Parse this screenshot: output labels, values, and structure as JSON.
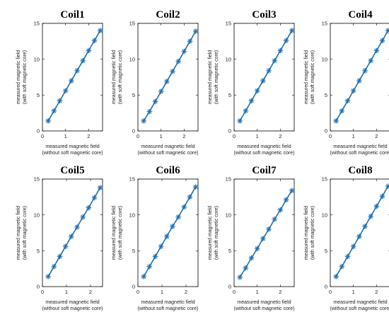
{
  "figure": {
    "series_color": "#1f6fb2",
    "marker": "asterisk"
  },
  "chart_data": [
    {
      "type": "line",
      "title": "Coil1",
      "xlabel": [
        "measured magnetic field",
        "(without soft magnetic core)"
      ],
      "ylabel": [
        "measured magnetic field",
        "(with soft magnetic core)"
      ],
      "xlim": [
        0,
        2.6
      ],
      "ylim": [
        0,
        15
      ],
      "xticks": [
        0,
        1,
        2
      ],
      "yticks": [
        0,
        5,
        10,
        15
      ],
      "x": [
        0.25,
        0.5,
        0.75,
        1.0,
        1.25,
        1.5,
        1.75,
        2.0,
        2.25,
        2.5
      ],
      "y": [
        1.4,
        2.8,
        4.2,
        5.6,
        7.0,
        8.4,
        9.8,
        11.2,
        12.6,
        14.0
      ]
    },
    {
      "type": "line",
      "title": "Coil2",
      "xlabel": [
        "measured magnetic field",
        "(without soft magnetic core)"
      ],
      "ylabel": [
        "measured magnetic field",
        "(with soft magnetic core)"
      ],
      "xlim": [
        0,
        2.6
      ],
      "ylim": [
        0,
        15
      ],
      "xticks": [
        0,
        1,
        2
      ],
      "yticks": [
        0,
        5,
        10,
        15
      ],
      "x": [
        0.25,
        0.5,
        0.75,
        1.0,
        1.25,
        1.5,
        1.75,
        2.0,
        2.25,
        2.5
      ],
      "y": [
        1.4,
        2.7,
        4.1,
        5.5,
        6.9,
        8.3,
        9.7,
        11.1,
        12.5,
        13.9
      ]
    },
    {
      "type": "line",
      "title": "Coil3",
      "xlabel": [
        "measured magnetic field",
        "(without soft magnetic core)"
      ],
      "ylabel": [
        "measured magnetic field",
        "(with soft magnetic core)"
      ],
      "xlim": [
        0,
        2.6
      ],
      "ylim": [
        0,
        15
      ],
      "xticks": [
        0,
        1,
        2
      ],
      "yticks": [
        0,
        5,
        10,
        15
      ],
      "x": [
        0.25,
        0.5,
        0.75,
        1.0,
        1.25,
        1.5,
        1.75,
        2.0,
        2.25,
        2.5
      ],
      "y": [
        1.4,
        2.8,
        4.2,
        5.6,
        7.0,
        8.4,
        9.8,
        11.2,
        12.6,
        14.0
      ]
    },
    {
      "type": "line",
      "title": "Coil4",
      "xlabel": [
        "measured magnetic field",
        "(without soft magnetic core)"
      ],
      "ylabel": [
        "measured magnetic field",
        "(with soft magnetic core)"
      ],
      "xlim": [
        0,
        2.6
      ],
      "ylim": [
        0,
        15
      ],
      "xticks": [
        0,
        1,
        2
      ],
      "yticks": [
        0,
        5,
        10,
        15
      ],
      "x": [
        0.25,
        0.5,
        0.75,
        1.0,
        1.25,
        1.5,
        1.75,
        2.0,
        2.25,
        2.5
      ],
      "y": [
        1.4,
        2.8,
        4.2,
        5.6,
        7.0,
        8.4,
        9.8,
        11.2,
        12.6,
        14.0
      ]
    },
    {
      "type": "line",
      "title": "Coil5",
      "xlabel": [
        "measured magnetic field",
        "(without soft magnetic core)"
      ],
      "ylabel": [
        "measured magnetic field",
        "(with soft magnetic core)"
      ],
      "xlim": [
        0,
        2.5
      ],
      "ylim": [
        0,
        15
      ],
      "xticks": [
        0,
        1,
        2
      ],
      "yticks": [
        0,
        5,
        10,
        15
      ],
      "x": [
        0.24,
        0.48,
        0.72,
        0.96,
        1.2,
        1.44,
        1.68,
        1.92,
        2.16,
        2.4
      ],
      "y": [
        1.4,
        2.8,
        4.2,
        5.6,
        7.0,
        8.3,
        9.7,
        11.0,
        12.4,
        13.8
      ]
    },
    {
      "type": "line",
      "title": "Coil6",
      "xlabel": [
        "measured magnetic field",
        "(without soft magnetic core)"
      ],
      "ylabel": [
        "measured magnetic field",
        "(with soft magnetic core)"
      ],
      "xlim": [
        0,
        2.5
      ],
      "ylim": [
        0,
        15
      ],
      "xticks": [
        0,
        1,
        2
      ],
      "yticks": [
        0,
        5,
        10,
        15
      ],
      "x": [
        0.24,
        0.48,
        0.72,
        0.96,
        1.2,
        1.44,
        1.68,
        1.92,
        2.16,
        2.4
      ],
      "y": [
        1.4,
        2.8,
        4.2,
        5.6,
        7.0,
        8.4,
        9.7,
        11.1,
        12.5,
        13.9
      ]
    },
    {
      "type": "line",
      "title": "Coil7",
      "xlabel": [
        "measured magnetic field",
        "(without soft magnetic core)"
      ],
      "ylabel": [
        "measured magnetic field",
        "(with soft magnetic core)"
      ],
      "xlim": [
        0,
        2.6
      ],
      "ylim": [
        0,
        15
      ],
      "xticks": [
        0,
        1,
        2
      ],
      "yticks": [
        0,
        5,
        10,
        15
      ],
      "x": [
        0.25,
        0.5,
        0.75,
        1.0,
        1.25,
        1.5,
        1.75,
        2.0,
        2.25,
        2.5
      ],
      "y": [
        1.3,
        2.6,
        4.0,
        5.3,
        6.7,
        8.0,
        9.4,
        10.7,
        12.1,
        13.4
      ]
    },
    {
      "type": "line",
      "title": "Coil8",
      "xlabel": [
        "measured magnetic field",
        "(without soft magnetic core)"
      ],
      "ylabel": [
        "measured magnetic field",
        "(with soft magnetic core)"
      ],
      "xlim": [
        0,
        2.6
      ],
      "ylim": [
        0,
        15
      ],
      "xticks": [
        0,
        1,
        2
      ],
      "yticks": [
        0,
        5,
        10,
        15
      ],
      "x": [
        0.25,
        0.5,
        0.75,
        1.0,
        1.25,
        1.5,
        1.75,
        2.0,
        2.25,
        2.5
      ],
      "y": [
        1.4,
        2.8,
        4.2,
        5.6,
        7.0,
        8.4,
        9.8,
        11.2,
        12.6,
        14.0
      ]
    }
  ]
}
